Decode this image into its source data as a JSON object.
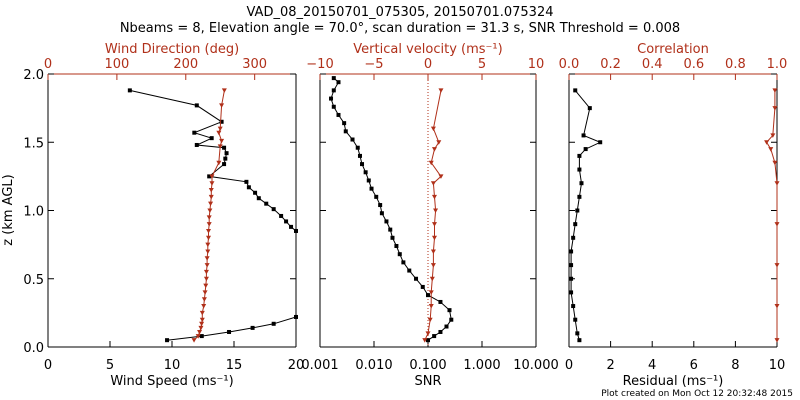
{
  "title_line1": "VAD_08_20150701_075305, 20150701.075324",
  "title_line2": "Nbeams = 8, Elevation angle = 70.0°, scan duration = 31.3 s, SNR Threshold = 0.008",
  "footer": "Plot created on Mon Oct 12 20:32:48 2015",
  "colors": {
    "primary": "#000000",
    "secondary": "#b0301a"
  },
  "chart_data": [
    {
      "type": "line",
      "ylabel": "z (km AGL)",
      "ylim": [
        0,
        2
      ],
      "yticks": [
        "0.0",
        "0.5",
        "1.0",
        "1.5",
        "2.0"
      ],
      "bottom_axis": {
        "label": "Wind Speed (ms⁻¹)",
        "range": [
          0,
          20
        ],
        "ticks": [
          "0",
          "5",
          "10",
          "15",
          "20"
        ]
      },
      "top_axis": {
        "label": "Wind Direction (deg)",
        "range": [
          0,
          360
        ],
        "ticks": [
          "0",
          "100",
          "200",
          "300"
        ]
      },
      "series": [
        {
          "axis": "bottom",
          "values": [
            [
              9.6,
              0.05
            ],
            [
              12.4,
              0.08
            ],
            [
              14.6,
              0.11
            ],
            [
              16.5,
              0.14
            ],
            [
              18.2,
              0.17
            ],
            [
              20.0,
              0.22
            ],
            [
              20.0,
              0.85
            ],
            [
              19.6,
              0.88
            ],
            [
              19.2,
              0.92
            ],
            [
              18.8,
              0.96
            ],
            [
              18.2,
              1.01
            ],
            [
              17.6,
              1.05
            ],
            [
              17.0,
              1.09
            ],
            [
              16.7,
              1.13
            ],
            [
              16.2,
              1.17
            ],
            [
              16.0,
              1.21
            ],
            [
              13.0,
              1.25
            ],
            [
              14.2,
              1.34
            ],
            [
              14.3,
              1.38
            ],
            [
              14.4,
              1.42
            ],
            [
              14.2,
              1.46
            ],
            [
              12.0,
              1.48
            ],
            [
              13.2,
              1.53
            ],
            [
              11.8,
              1.57
            ],
            [
              14.0,
              1.65
            ],
            [
              12.0,
              1.77
            ],
            [
              6.6,
              1.88
            ]
          ]
        },
        {
          "axis": "top",
          "values": [
            [
              212,
              0.05
            ],
            [
              218,
              0.08
            ],
            [
              220,
              0.11
            ],
            [
              222,
              0.14
            ],
            [
              223,
              0.17
            ],
            [
              224,
              0.2
            ],
            [
              224,
              0.25
            ],
            [
              226,
              0.3
            ],
            [
              227,
              0.35
            ],
            [
              228,
              0.4
            ],
            [
              229,
              0.45
            ],
            [
              230,
              0.5
            ],
            [
              230,
              0.55
            ],
            [
              231,
              0.6
            ],
            [
              231,
              0.65
            ],
            [
              232,
              0.7
            ],
            [
              232,
              0.75
            ],
            [
              233,
              0.8
            ],
            [
              233,
              0.85
            ],
            [
              234,
              0.9
            ],
            [
              234,
              0.95
            ],
            [
              235,
              1.0
            ],
            [
              236,
              1.05
            ],
            [
              237,
              1.1
            ],
            [
              237,
              1.15
            ],
            [
              238,
              1.2
            ],
            [
              238,
              1.25
            ],
            [
              248,
              1.35
            ],
            [
              250,
              1.47
            ],
            [
              252,
              1.51
            ],
            [
              248,
              1.57
            ],
            [
              250,
              1.6
            ],
            [
              252,
              1.77
            ],
            [
              256,
              1.88
            ]
          ]
        }
      ]
    },
    {
      "type": "line",
      "bottom_axis": {
        "label": "SNR",
        "scale": "log",
        "range": [
          0.001,
          10
        ],
        "ticks": [
          "0.001",
          "0.010",
          "0.100",
          "1.000",
          "10.000"
        ]
      },
      "top_axis": {
        "label": "Vertical velocity (ms⁻¹)",
        "range": [
          -10,
          10
        ],
        "ticks": [
          "−10",
          "−5",
          "0",
          "5",
          "10"
        ],
        "zero_line": "dotted"
      },
      "series": [
        {
          "axis": "bottom",
          "values": [
            [
              0.1,
              0.05
            ],
            [
              0.13,
              0.08
            ],
            [
              0.17,
              0.11
            ],
            [
              0.22,
              0.15
            ],
            [
              0.27,
              0.2
            ],
            [
              0.25,
              0.27
            ],
            [
              0.17,
              0.33
            ],
            [
              0.1,
              0.38
            ],
            [
              0.08,
              0.44
            ],
            [
              0.06,
              0.5
            ],
            [
              0.045,
              0.56
            ],
            [
              0.035,
              0.62
            ],
            [
              0.03,
              0.68
            ],
            [
              0.026,
              0.74
            ],
            [
              0.022,
              0.8
            ],
            [
              0.02,
              0.86
            ],
            [
              0.017,
              0.92
            ],
            [
              0.014,
              0.98
            ],
            [
              0.013,
              1.04
            ],
            [
              0.011,
              1.1
            ],
            [
              0.009,
              1.16
            ],
            [
              0.008,
              1.22
            ],
            [
              0.007,
              1.28
            ],
            [
              0.006,
              1.34
            ],
            [
              0.0055,
              1.4
            ],
            [
              0.005,
              1.46
            ],
            [
              0.004,
              1.52
            ],
            [
              0.003,
              1.58
            ],
            [
              0.0028,
              1.64
            ],
            [
              0.0022,
              1.7
            ],
            [
              0.0018,
              1.76
            ],
            [
              0.0016,
              1.82
            ],
            [
              0.0018,
              1.88
            ],
            [
              0.0022,
              1.94
            ],
            [
              0.0018,
              1.97
            ]
          ]
        },
        {
          "axis": "top",
          "values": [
            [
              -0.3,
              0.05
            ],
            [
              0,
              0.1
            ],
            [
              0.2,
              0.2
            ],
            [
              0.3,
              0.3
            ],
            [
              0.3,
              0.4
            ],
            [
              0.4,
              0.5
            ],
            [
              0.5,
              0.6
            ],
            [
              0.5,
              0.7
            ],
            [
              0.6,
              0.8
            ],
            [
              0.6,
              0.9
            ],
            [
              0.7,
              1.0
            ],
            [
              0.6,
              1.1
            ],
            [
              0.5,
              1.2
            ],
            [
              1.2,
              1.25
            ],
            [
              0.3,
              1.35
            ],
            [
              0.6,
              1.45
            ],
            [
              1.0,
              1.5
            ],
            [
              0.5,
              1.6
            ],
            [
              1.2,
              1.88
            ]
          ]
        }
      ]
    },
    {
      "type": "line",
      "bottom_axis": {
        "label": "Residual (ms⁻¹)",
        "range": [
          0,
          10
        ],
        "ticks": [
          "0",
          "2",
          "4",
          "6",
          "8",
          "10"
        ]
      },
      "top_axis": {
        "label": "Correlation",
        "range": [
          0,
          1
        ],
        "ticks": [
          "0.0",
          "0.2",
          "0.4",
          "0.6",
          "0.8",
          "1.0"
        ]
      },
      "series": [
        {
          "axis": "bottom",
          "values": [
            [
              0.5,
              0.05
            ],
            [
              0.4,
              0.1
            ],
            [
              0.3,
              0.2
            ],
            [
              0.2,
              0.3
            ],
            [
              0.1,
              0.4
            ],
            [
              0.1,
              0.5
            ],
            [
              0.1,
              0.6
            ],
            [
              0.1,
              0.7
            ],
            [
              0.2,
              0.8
            ],
            [
              0.3,
              0.9
            ],
            [
              0.4,
              1.0
            ],
            [
              0.5,
              1.1
            ],
            [
              0.6,
              1.2
            ],
            [
              0.5,
              1.3
            ],
            [
              0.5,
              1.4
            ],
            [
              0.8,
              1.45
            ],
            [
              1.5,
              1.5
            ],
            [
              0.7,
              1.55
            ],
            [
              1.0,
              1.75
            ],
            [
              0.3,
              1.88
            ]
          ]
        },
        {
          "axis": "top",
          "values": [
            [
              1.0,
              0.05
            ],
            [
              1.0,
              0.3
            ],
            [
              1.0,
              0.6
            ],
            [
              1.0,
              0.9
            ],
            [
              1.0,
              1.2
            ],
            [
              0.99,
              1.35
            ],
            [
              0.97,
              1.45
            ],
            [
              0.95,
              1.5
            ],
            [
              0.98,
              1.55
            ],
            [
              0.99,
              1.75
            ],
            [
              0.99,
              1.88
            ]
          ]
        }
      ]
    }
  ]
}
